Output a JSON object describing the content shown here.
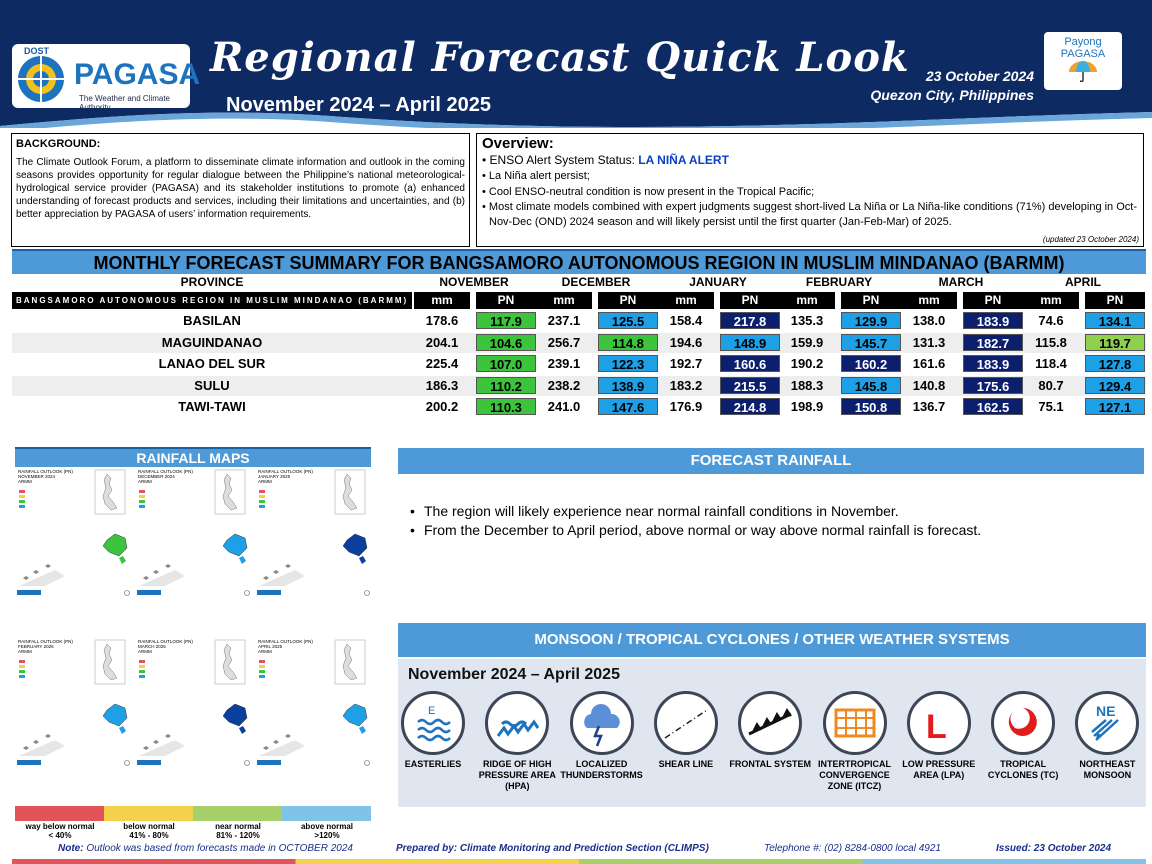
{
  "header": {
    "dost": "DOST",
    "brand": "PAGASA",
    "tagline": "The Weather and Climate Authority",
    "title": "Regional Forecast Quick Look",
    "period": "November 2024 – April 2025",
    "date": "23 October 2024",
    "place": "Quezon City, Philippines",
    "payong_1": "Payong",
    "payong_2": "PAGASA"
  },
  "background": {
    "heading": "BACKGROUND:",
    "text": "The Climate Outlook Forum, a platform to disseminate climate information and outlook in the coming seasons provides opportunity for regular dialogue between the Philippine’s national meteorological-hydrological service provider (PAGASA) and its stakeholder institutions to promote (a) enhanced understanding of forecast products and services, including their limitations and uncertainties, and (b) better appreciation by PAGASA of users’ information requirements."
  },
  "overview": {
    "heading": "Overview:",
    "enso_label": "ENSO Alert System Status: ",
    "enso_status": "LA NIÑA ALERT",
    "items": [
      "La Niña alert persist;",
      "Cool ENSO-neutral condition is now present in the Tropical Pacific;",
      "Most climate models combined with expert judgments suggest short-lived La Niña or La Niña-like conditions (71%) developing in Oct-Nov-Dec (OND) 2024 season and will likely persist until the first quarter (Jan-Feb-Mar) of 2025."
    ],
    "updated": "(updated 23 October 2024)"
  },
  "forecast_table": {
    "title": "MONTHLY FORECAST SUMMARY FOR BANGSAMORO AUTONOMOUS REGION IN MUSLIM MINDANAO (BARMM)",
    "province_header": "PROVINCE",
    "region_label": "BANGSAMORO AUTONOMOUS REGION IN MUSLIM MINDANAO (BARMM)",
    "months": [
      "NOVEMBER",
      "DECEMBER",
      "JANUARY",
      "FEBRUARY",
      "MARCH",
      "APRIL"
    ],
    "sub_mm": "mm",
    "sub_pn": "PN",
    "rows": [
      {
        "province": "BASILAN",
        "values": [
          [
            "178.6",
            "117.9",
            "green"
          ],
          [
            "237.1",
            "125.5",
            "blue"
          ],
          [
            "158.4",
            "217.8",
            "navy"
          ],
          [
            "135.3",
            "129.9",
            "blue"
          ],
          [
            "138.0",
            "183.9",
            "navy"
          ],
          [
            "74.6",
            "134.1",
            "blue"
          ]
        ]
      },
      {
        "province": "MAGUINDANAO",
        "values": [
          [
            "204.1",
            "104.6",
            "green"
          ],
          [
            "256.7",
            "114.8",
            "green"
          ],
          [
            "194.6",
            "148.9",
            "blue"
          ],
          [
            "159.9",
            "145.7",
            "blue"
          ],
          [
            "131.3",
            "182.7",
            "navy"
          ],
          [
            "115.8",
            "119.7",
            "lgreen"
          ]
        ]
      },
      {
        "province": "LANAO DEL SUR",
        "values": [
          [
            "225.4",
            "107.0",
            "green"
          ],
          [
            "239.1",
            "122.3",
            "blue"
          ],
          [
            "192.7",
            "160.6",
            "navy"
          ],
          [
            "190.2",
            "160.2",
            "navy"
          ],
          [
            "161.6",
            "183.9",
            "navy"
          ],
          [
            "118.4",
            "127.8",
            "blue"
          ]
        ]
      },
      {
        "province": "SULU",
        "values": [
          [
            "186.3",
            "110.2",
            "green"
          ],
          [
            "238.2",
            "138.9",
            "blue"
          ],
          [
            "183.2",
            "215.5",
            "navy"
          ],
          [
            "188.3",
            "145.8",
            "blue"
          ],
          [
            "140.8",
            "175.6",
            "navy"
          ],
          [
            "80.7",
            "129.4",
            "blue"
          ]
        ]
      },
      {
        "province": "TAWI-TAWI",
        "values": [
          [
            "200.2",
            "110.3",
            "green"
          ],
          [
            "241.0",
            "147.6",
            "blue"
          ],
          [
            "176.9",
            "214.8",
            "navy"
          ],
          [
            "198.9",
            "150.8",
            "navy"
          ],
          [
            "136.7",
            "162.5",
            "navy"
          ],
          [
            "75.1",
            "127.1",
            "blue"
          ]
        ]
      }
    ]
  },
  "rainfall_maps": {
    "title": "RAINFALL MAPS",
    "maps": [
      {
        "label": "RAINFALL OUTLOOK (PN)",
        "month": "NOVEMBER 2024",
        "region": "ARMM"
      },
      {
        "label": "RAINFALL OUTLOOK (PN)",
        "month": "DECEMBER 2024",
        "region": "ARMM"
      },
      {
        "label": "RAINFALL OUTLOOK (PN)",
        "month": "JANUARY 2025",
        "region": "ARMM"
      },
      {
        "label": "RAINFALL OUTLOOK (PN)",
        "month": "FEBRUARY 2025",
        "region": "ARMM"
      },
      {
        "label": "RAINFALL OUTLOOK (PN)",
        "month": "MARCH 2025",
        "region": "ARMM"
      },
      {
        "label": "RAINFALL OUTLOOK (PN)",
        "month": "APRIL 2025",
        "region": "ARMM"
      }
    ],
    "legend": [
      {
        "label": "way below normal",
        "range": "< 40%",
        "color": "#e0545a"
      },
      {
        "label": "below normal",
        "range": "41% - 80%",
        "color": "#f3d14a"
      },
      {
        "label": "near normal",
        "range": "81% - 120%",
        "color": "#a7d06b"
      },
      {
        "label": "above normal",
        "range": ">120%",
        "color": "#7fc3e8"
      }
    ]
  },
  "forecast_rainfall": {
    "title": "FORECAST RAINFALL",
    "items": [
      "The region will likely experience near normal rainfall conditions in November.",
      "From the December to April period, above normal or way above normal rainfall is forecast."
    ]
  },
  "monsoon": {
    "title": "MONSOON / TROPICAL CYCLONES / OTHER WEATHER SYSTEMS",
    "period": "November 2024 – April 2025",
    "systems": [
      {
        "label": "EASTERLIES",
        "icon": "easterlies-icon"
      },
      {
        "label": "RIDGE OF HIGH PRESSURE AREA (HPA)",
        "icon": "ridge-icon"
      },
      {
        "label": "LOCALIZED THUNDERSTORMS",
        "icon": "thunderstorm-icon"
      },
      {
        "label": "SHEAR LINE",
        "icon": "shear-line-icon"
      },
      {
        "label": "FRONTAL SYSTEM",
        "icon": "frontal-system-icon"
      },
      {
        "label": "INTERTROPICAL CONVERGENCE ZONE (ITCZ)",
        "icon": "itcz-icon"
      },
      {
        "label": "LOW PRESSURE AREA (LPA)",
        "icon": "low-pressure-icon"
      },
      {
        "label": "TROPICAL CYCLONES (TC)",
        "icon": "tropical-cyclone-icon"
      },
      {
        "label": "NORTHEAST MONSOON",
        "icon": "northeast-monsoon-icon"
      }
    ],
    "easterlies_letter": "E",
    "lpa_letter": "L",
    "ne_letters": "NE"
  },
  "footer": {
    "note_label": "Note:",
    "note": " Outlook was based from forecasts made in OCTOBER 2024",
    "prepared": "Prepared by: Climate Monitoring and Prediction Section (CLIMPS)",
    "telephone": "Telephone #: (02) 8284-0800 local 4921",
    "issued": "Issued: 23 October 2024"
  }
}
